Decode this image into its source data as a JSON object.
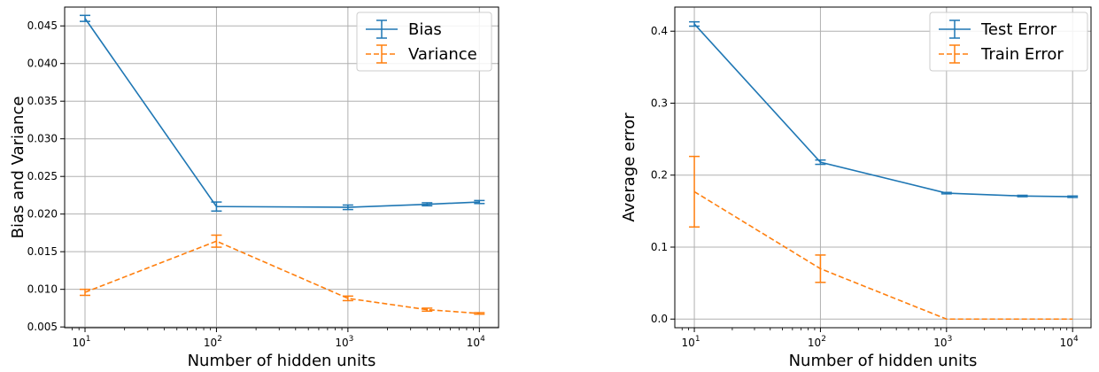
{
  "chart_data": [
    {
      "type": "line",
      "xscale": "log",
      "xlabel": "Number of hidden units",
      "ylabel": "Bias and Variance",
      "xlim": [
        7,
        14000
      ],
      "ylim": [
        0.0049,
        0.0475
      ],
      "xticks": [
        10,
        100,
        1000,
        10000
      ],
      "xtick_labels": [
        [
          "10",
          "1"
        ],
        [
          "10",
          "2"
        ],
        [
          "10",
          "3"
        ],
        [
          "10",
          "4"
        ]
      ],
      "yticks": [
        0.005,
        0.01,
        0.015,
        0.02,
        0.025,
        0.03,
        0.035,
        0.04,
        0.045
      ],
      "ytick_labels": [
        "0.005",
        "0.010",
        "0.015",
        "0.020",
        "0.025",
        "0.030",
        "0.035",
        "0.040",
        "0.045"
      ],
      "grid": true,
      "legend": "top-right",
      "series": [
        {
          "name": "Bias",
          "color": "#1f77b4",
          "style": "solid",
          "x": [
            10,
            100,
            1000,
            4000,
            10000
          ],
          "y": [
            0.046,
            0.021,
            0.0209,
            0.0213,
            0.0216
          ],
          "err": [
            0.0004,
            0.0006,
            0.0003,
            0.0002,
            0.0002
          ]
        },
        {
          "name": "Variance",
          "color": "#ff7f0e",
          "style": "dashed",
          "x": [
            10,
            100,
            1000,
            4000,
            10000
          ],
          "y": [
            0.0096,
            0.0164,
            0.0088,
            0.0073,
            0.0068
          ],
          "err": [
            0.0004,
            0.0008,
            0.0003,
            0.0002,
            0.0001
          ]
        }
      ]
    },
    {
      "type": "line",
      "xscale": "log",
      "xlabel": "Number of hidden units",
      "ylabel": "Average error",
      "xlim": [
        7,
        14000
      ],
      "ylim": [
        -0.012,
        0.4335
      ],
      "xticks": [
        10,
        100,
        1000,
        10000
      ],
      "xtick_labels": [
        [
          "10",
          "1"
        ],
        [
          "10",
          "2"
        ],
        [
          "10",
          "3"
        ],
        [
          "10",
          "4"
        ]
      ],
      "yticks": [
        0.0,
        0.1,
        0.2,
        0.3,
        0.4
      ],
      "ytick_labels": [
        "0.0",
        "0.1",
        "0.2",
        "0.3",
        "0.4"
      ],
      "grid": true,
      "legend": "top-right",
      "series": [
        {
          "name": "Test Error",
          "color": "#1f77b4",
          "style": "solid",
          "x": [
            10,
            100,
            1000,
            4000,
            10000
          ],
          "y": [
            0.41,
            0.218,
            0.175,
            0.171,
            0.17
          ],
          "err": [
            0.003,
            0.003,
            0.001,
            0.001,
            0.001
          ]
        },
        {
          "name": "Train Error",
          "color": "#ff7f0e",
          "style": "dashed",
          "x": [
            10,
            100,
            1000,
            4000,
            10000
          ],
          "y": [
            0.177,
            0.07,
            0.0,
            0.0,
            0.0
          ],
          "err": [
            0.049,
            0.019,
            0.0,
            0.0,
            0.0
          ]
        }
      ]
    }
  ]
}
